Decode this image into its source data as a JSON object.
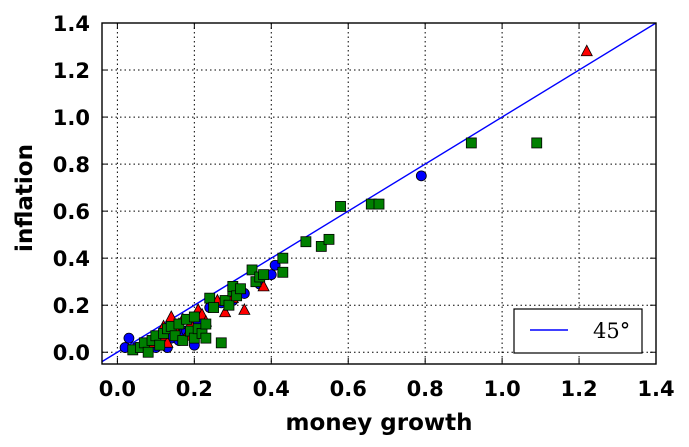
{
  "chart_data": {
    "type": "scatter",
    "xlabel": "money growth",
    "ylabel": "inflation",
    "xlim": [
      -0.04,
      1.4
    ],
    "ylim": [
      -0.05,
      1.4
    ],
    "x_ticks": [
      "0.0",
      "0.2",
      "0.4",
      "0.6",
      "0.8",
      "1.0",
      "1.2",
      "1.4"
    ],
    "y_ticks": [
      "0.0",
      "0.2",
      "0.4",
      "0.6",
      "0.8",
      "1.0",
      "1.2",
      "1.4"
    ],
    "grid": true,
    "legend_placement": "bottom-right",
    "reference_line": {
      "label": "45°",
      "label_display": "45°",
      "slope": 1,
      "intercept": 0,
      "color": "#0000ff"
    },
    "series": [
      {
        "marker": "circle",
        "color": "#0000ff",
        "points": [
          [
            0.02,
            0.02
          ],
          [
            0.03,
            0.06
          ],
          [
            0.05,
            0.02
          ],
          [
            0.07,
            0.03
          ],
          [
            0.09,
            0.04
          ],
          [
            0.1,
            0.02
          ],
          [
            0.11,
            0.04
          ],
          [
            0.12,
            0.05
          ],
          [
            0.13,
            0.02
          ],
          [
            0.14,
            0.06
          ],
          [
            0.16,
            0.05
          ],
          [
            0.17,
            0.08
          ],
          [
            0.18,
            0.09
          ],
          [
            0.2,
            0.03
          ],
          [
            0.21,
            0.13
          ],
          [
            0.24,
            0.19
          ],
          [
            0.25,
            0.21
          ],
          [
            0.27,
            0.21
          ],
          [
            0.3,
            0.22
          ],
          [
            0.33,
            0.25
          ],
          [
            0.37,
            0.29
          ],
          [
            0.4,
            0.33
          ],
          [
            0.41,
            0.37
          ],
          [
            0.79,
            0.75
          ]
        ]
      },
      {
        "marker": "triangle",
        "color": "#ff0000",
        "points": [
          [
            0.09,
            0.04
          ],
          [
            0.1,
            0.06
          ],
          [
            0.12,
            0.07
          ],
          [
            0.12,
            0.11
          ],
          [
            0.13,
            0.04
          ],
          [
            0.14,
            0.15
          ],
          [
            0.15,
            0.1
          ],
          [
            0.16,
            0.12
          ],
          [
            0.17,
            0.14
          ],
          [
            0.18,
            0.07
          ],
          [
            0.19,
            0.12
          ],
          [
            0.21,
            0.18
          ],
          [
            0.22,
            0.16
          ],
          [
            0.23,
            0.13
          ],
          [
            0.26,
            0.22
          ],
          [
            0.28,
            0.17
          ],
          [
            0.3,
            0.23
          ],
          [
            0.33,
            0.18
          ],
          [
            0.38,
            0.28
          ],
          [
            1.22,
            1.28
          ]
        ]
      },
      {
        "marker": "square",
        "color": "#008000",
        "points": [
          [
            0.04,
            0.01
          ],
          [
            0.06,
            0.02
          ],
          [
            0.07,
            0.04
          ],
          [
            0.08,
            0.0
          ],
          [
            0.09,
            0.05
          ],
          [
            0.1,
            0.07
          ],
          [
            0.11,
            0.03
          ],
          [
            0.12,
            0.08
          ],
          [
            0.13,
            0.1
          ],
          [
            0.14,
            0.11
          ],
          [
            0.15,
            0.07
          ],
          [
            0.16,
            0.12
          ],
          [
            0.17,
            0.05
          ],
          [
            0.18,
            0.14
          ],
          [
            0.19,
            0.09
          ],
          [
            0.2,
            0.15
          ],
          [
            0.2,
            0.06
          ],
          [
            0.21,
            0.1
          ],
          [
            0.22,
            0.08
          ],
          [
            0.23,
            0.06
          ],
          [
            0.23,
            0.12
          ],
          [
            0.24,
            0.23
          ],
          [
            0.25,
            0.19
          ],
          [
            0.27,
            0.04
          ],
          [
            0.28,
            0.22
          ],
          [
            0.29,
            0.2
          ],
          [
            0.3,
            0.26
          ],
          [
            0.3,
            0.28
          ],
          [
            0.31,
            0.24
          ],
          [
            0.32,
            0.27
          ],
          [
            0.35,
            0.35
          ],
          [
            0.36,
            0.3
          ],
          [
            0.37,
            0.32
          ],
          [
            0.38,
            0.33
          ],
          [
            0.43,
            0.4
          ],
          [
            0.43,
            0.34
          ],
          [
            0.49,
            0.47
          ],
          [
            0.53,
            0.45
          ],
          [
            0.55,
            0.48
          ],
          [
            0.58,
            0.62
          ],
          [
            0.66,
            0.63
          ],
          [
            0.68,
            0.63
          ],
          [
            0.92,
            0.89
          ],
          [
            1.09,
            0.89
          ]
        ]
      }
    ]
  }
}
